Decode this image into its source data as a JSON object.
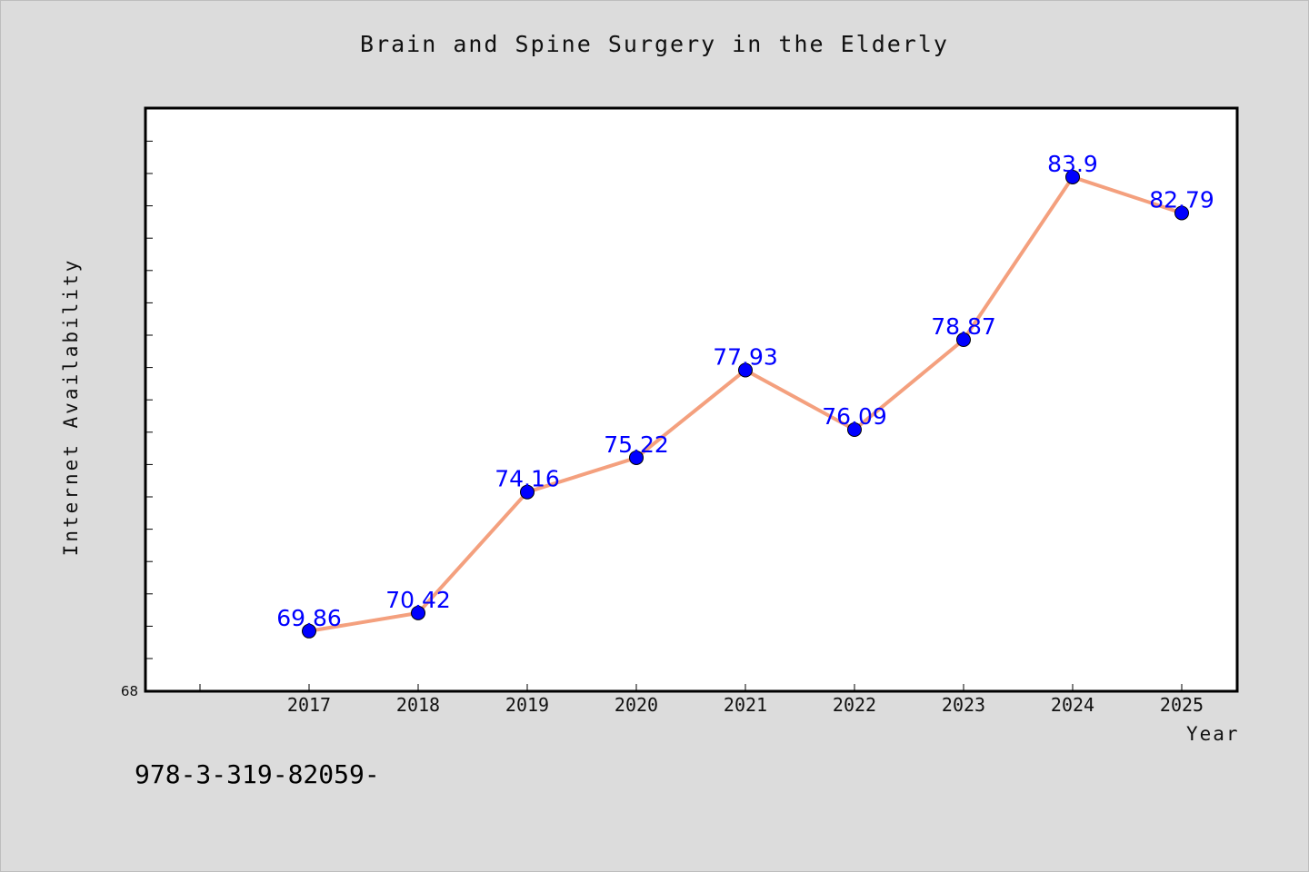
{
  "chart_data": {
    "type": "line",
    "title": "Brain and Spine Surgery in the Elderly",
    "xlabel": "Year",
    "ylabel": "Internet Availability",
    "categories": [
      "2017",
      "2018",
      "2019",
      "2020",
      "2021",
      "2022",
      "2023",
      "2024",
      "2025"
    ],
    "series": [
      {
        "values": [
          69.86,
          70.42,
          74.16,
          75.22,
          77.93,
          76.09,
          78.87,
          83.9,
          82.79
        ],
        "labels": [
          "69.86",
          "70.42",
          "74.16",
          "75.22",
          "77.93",
          "76.09",
          "78.87",
          "83.9",
          "82.79"
        ]
      }
    ],
    "ylim": [
      68,
      86
    ],
    "y_min_label": "68",
    "grid": false,
    "legend": "none",
    "line_color": "#f4a07e",
    "marker_color": "#0000ff",
    "label_color": "#0000ff"
  },
  "footer": {
    "text": "978-3-319-82059-"
  }
}
